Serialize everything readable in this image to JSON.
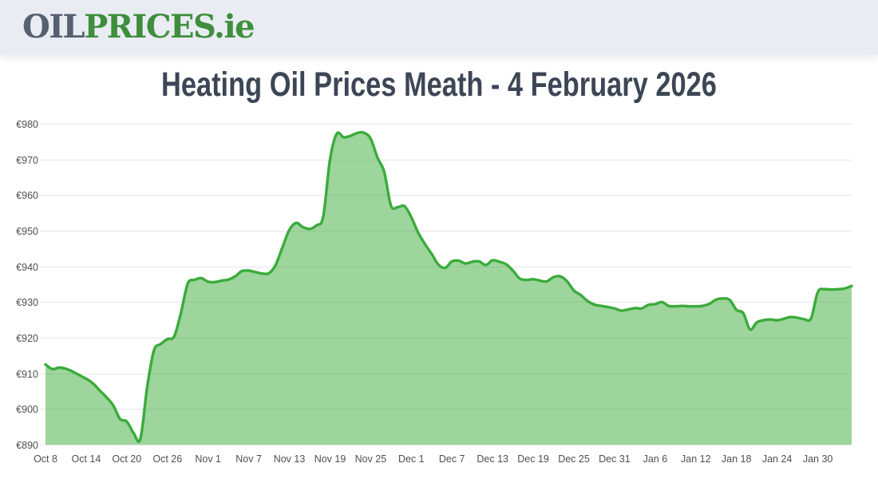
{
  "header": {
    "logo_oil": "OIL",
    "logo_prices": "PRICES",
    "logo_tld": ".ie"
  },
  "page": {
    "title": "Heating Oil Prices Meath - 4 February 2026"
  },
  "colors": {
    "header_bg": "#e9ecf3",
    "logo_dark": "#56606f",
    "logo_green": "#3e8e3c",
    "title_text": "#3d4655",
    "line": "#3bab3b",
    "fill": "rgba(59,171,59,0.5)",
    "grid": "#e6e6e6",
    "axis_text": "#4f4f4f"
  },
  "chart_data": {
    "type": "area",
    "title": "Heating Oil Prices Meath - 4 February 2026",
    "currency_prefix": "€",
    "xlabel": "",
    "ylabel": "",
    "ylim": [
      890,
      980
    ],
    "y_tick_step": 10,
    "grid": true,
    "legend": false,
    "x_tick_every": 6,
    "x_tick_labels": [
      "Oct 8",
      "Oct 14",
      "Oct 20",
      "Oct 26",
      "Nov 1",
      "Nov 7",
      "Nov 13",
      "Nov 19",
      "Nov 25",
      "Dec 1",
      "Dec 7",
      "Dec 13",
      "Dec 19",
      "Dec 25",
      "Dec 31",
      "Jan 6",
      "Jan 12",
      "Jan 18",
      "Jan 24",
      "Jan 30"
    ],
    "dates": [
      "Oct 8",
      "Oct 9",
      "Oct 10",
      "Oct 11",
      "Oct 12",
      "Oct 13",
      "Oct 14",
      "Oct 15",
      "Oct 16",
      "Oct 17",
      "Oct 18",
      "Oct 19",
      "Oct 20",
      "Oct 21",
      "Oct 22",
      "Oct 23",
      "Oct 24",
      "Oct 25",
      "Oct 26",
      "Oct 27",
      "Oct 28",
      "Oct 29",
      "Oct 30",
      "Oct 31",
      "Nov 1",
      "Nov 2",
      "Nov 3",
      "Nov 4",
      "Nov 5",
      "Nov 6",
      "Nov 7",
      "Nov 8",
      "Nov 9",
      "Nov 10",
      "Nov 11",
      "Nov 12",
      "Nov 13",
      "Nov 14",
      "Nov 15",
      "Nov 16",
      "Nov 17",
      "Nov 18",
      "Nov 19",
      "Nov 20",
      "Nov 21",
      "Nov 22",
      "Nov 23",
      "Nov 24",
      "Nov 25",
      "Nov 26",
      "Nov 27",
      "Nov 28",
      "Nov 29",
      "Nov 30",
      "Dec 1",
      "Dec 2",
      "Dec 3",
      "Dec 4",
      "Dec 5",
      "Dec 6",
      "Dec 7",
      "Dec 8",
      "Dec 9",
      "Dec 10",
      "Dec 11",
      "Dec 12",
      "Dec 13",
      "Dec 14",
      "Dec 15",
      "Dec 16",
      "Dec 17",
      "Dec 18",
      "Dec 19",
      "Dec 20",
      "Dec 21",
      "Dec 22",
      "Dec 23",
      "Dec 24",
      "Dec 25",
      "Dec 26",
      "Dec 27",
      "Dec 28",
      "Dec 29",
      "Dec 30",
      "Dec 31",
      "Jan 1",
      "Jan 2",
      "Jan 3",
      "Jan 4",
      "Jan 5",
      "Jan 6",
      "Jan 7",
      "Jan 8",
      "Jan 9",
      "Jan 10",
      "Jan 11",
      "Jan 12",
      "Jan 13",
      "Jan 14",
      "Jan 15",
      "Jan 16",
      "Jan 17",
      "Jan 18",
      "Jan 19",
      "Jan 20",
      "Jan 21",
      "Jan 22",
      "Jan 23",
      "Jan 24",
      "Jan 25",
      "Jan 26",
      "Jan 27",
      "Jan 28",
      "Jan 29",
      "Jan 30",
      "Jan 31",
      "Feb 1",
      "Feb 2",
      "Feb 3",
      "Feb 4"
    ],
    "values": [
      912.5,
      911.2,
      911.6,
      911.3,
      910.5,
      909.5,
      908.5,
      907.2,
      905.2,
      903.3,
      901.0,
      897.2,
      896.5,
      893.3,
      891.6,
      906.0,
      916.4,
      918.2,
      919.6,
      920.4,
      927.0,
      935.2,
      936.2,
      936.7,
      935.7,
      935.6,
      936.0,
      936.3,
      937.2,
      938.7,
      938.8,
      938.4,
      938.0,
      938.1,
      940.5,
      945.5,
      950.2,
      952.2,
      951.0,
      950.5,
      951.5,
      954.0,
      970.0,
      977.2,
      976.2,
      976.6,
      977.4,
      977.5,
      975.8,
      970.5,
      966.5,
      957.0,
      956.6,
      956.9,
      953.8,
      949.5,
      946.3,
      943.5,
      940.5,
      939.6,
      941.4,
      941.6,
      940.8,
      941.3,
      941.4,
      940.4,
      941.7,
      941.3,
      940.6,
      938.8,
      936.6,
      936.2,
      936.4,
      936.0,
      935.8,
      937.0,
      937.2,
      935.8,
      933.2,
      932.0,
      930.3,
      929.3,
      928.9,
      928.6,
      928.2,
      927.6,
      927.9,
      928.3,
      928.2,
      929.2,
      929.4,
      930.0,
      928.9,
      928.8,
      928.9,
      928.8,
      928.8,
      928.9,
      929.5,
      930.7,
      931.0,
      930.6,
      927.8,
      926.9,
      922.3,
      924.3,
      924.9,
      925.1,
      924.9,
      925.3,
      925.8,
      925.6,
      925.2,
      925.4,
      932.8,
      933.6,
      933.5,
      933.6,
      933.8,
      934.5
    ]
  }
}
